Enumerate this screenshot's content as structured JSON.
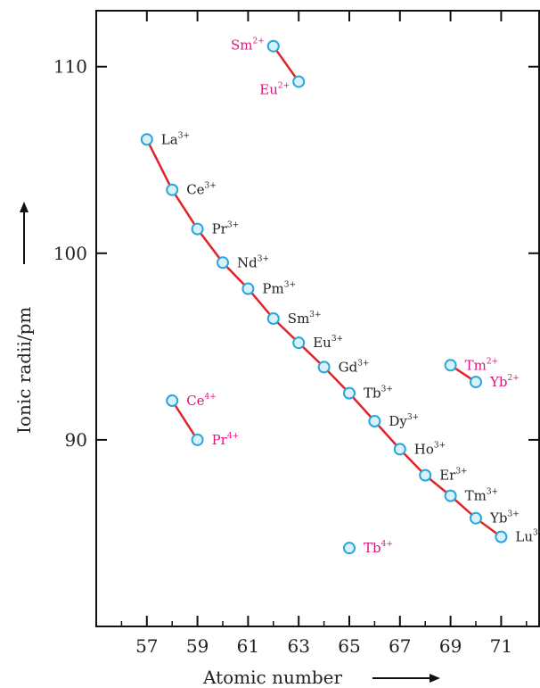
{
  "chart_data": {
    "type": "line",
    "xlabel": "Atomic number",
    "ylabel": "Ionic radii/pm",
    "xlim": [
      55,
      72.5
    ],
    "ylim": [
      80,
      113
    ],
    "x_ticks": [
      57,
      59,
      61,
      63,
      65,
      67,
      69,
      71
    ],
    "y_ticks": [
      90,
      100,
      110
    ],
    "grid": false,
    "colors": {
      "line": "#e0242a",
      "marker_fill": "#d9f1fb",
      "marker_stroke": "#2aa7d8",
      "label_trivalent": "#222222",
      "label_other": "#e0147e"
    },
    "series": [
      {
        "ion_group": "trivalent",
        "connected": true,
        "points": [
          {
            "x": 57,
            "y": 106.1,
            "label": "La",
            "charge": "3+"
          },
          {
            "x": 58,
            "y": 103.4,
            "label": "Ce",
            "charge": "3+"
          },
          {
            "x": 59,
            "y": 101.3,
            "label": "Pr",
            "charge": "3+"
          },
          {
            "x": 60,
            "y": 99.5,
            "label": "Nd",
            "charge": "3+"
          },
          {
            "x": 61,
            "y": 98.1,
            "label": "Pm",
            "charge": "3+"
          },
          {
            "x": 62,
            "y": 96.5,
            "label": "Sm",
            "charge": "3+"
          },
          {
            "x": 63,
            "y": 95.2,
            "label": "Eu",
            "charge": "3+"
          },
          {
            "x": 64,
            "y": 93.9,
            "label": "Gd",
            "charge": "3+"
          },
          {
            "x": 65,
            "y": 92.5,
            "label": "Tb",
            "charge": "3+"
          },
          {
            "x": 66,
            "y": 91.0,
            "label": "Dy",
            "charge": "3+"
          },
          {
            "x": 67,
            "y": 89.5,
            "label": "Ho",
            "charge": "3+"
          },
          {
            "x": 68,
            "y": 88.1,
            "label": "Er",
            "charge": "3+"
          },
          {
            "x": 69,
            "y": 87.0,
            "label": "Tm",
            "charge": "3+"
          },
          {
            "x": 70,
            "y": 85.8,
            "label": "Yb",
            "charge": "3+"
          },
          {
            "x": 71,
            "y": 84.8,
            "label": "Lu",
            "charge": "3+"
          }
        ]
      },
      {
        "ion_group": "divalent-sm-eu",
        "connected": true,
        "points": [
          {
            "x": 62,
            "y": 111.1,
            "label": "Sm",
            "charge": "2+"
          },
          {
            "x": 63,
            "y": 109.2,
            "label": "Eu",
            "charge": "2+"
          }
        ]
      },
      {
        "ion_group": "tetravalent-ce-pr",
        "connected": true,
        "points": [
          {
            "x": 58,
            "y": 92.1,
            "label": "Ce",
            "charge": "4+"
          },
          {
            "x": 59,
            "y": 90.0,
            "label": "Pr",
            "charge": "4+"
          }
        ]
      },
      {
        "ion_group": "divalent-tm-yb",
        "connected": true,
        "points": [
          {
            "x": 69,
            "y": 94.0,
            "label": "Tm",
            "charge": "2+"
          },
          {
            "x": 70,
            "y": 93.1,
            "label": "Yb",
            "charge": "2+"
          }
        ]
      },
      {
        "ion_group": "tetravalent-tb",
        "connected": false,
        "points": [
          {
            "x": 65,
            "y": 84.2,
            "label": "Tb",
            "charge": "4+"
          }
        ]
      }
    ]
  }
}
